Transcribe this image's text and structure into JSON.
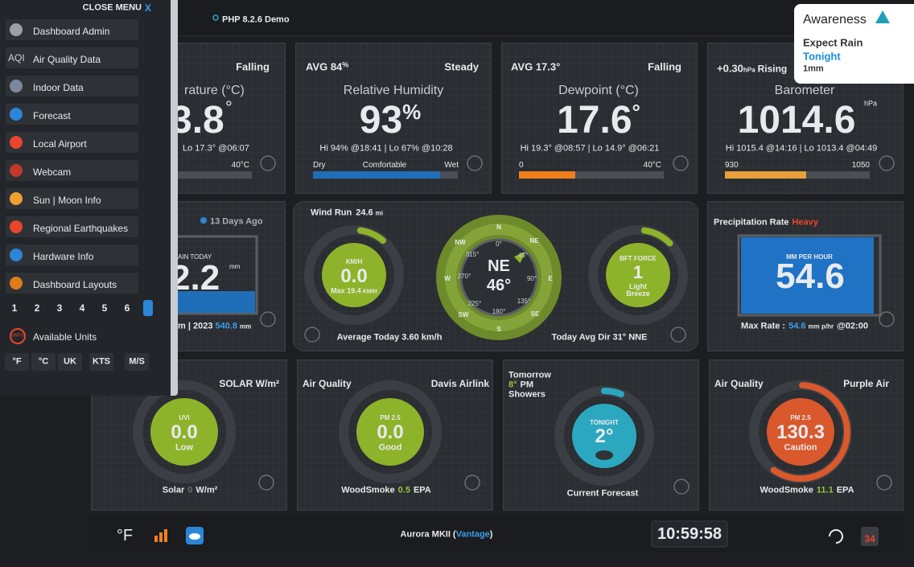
{
  "top_bar": {
    "title": "PHP 8.2.6 Demo"
  },
  "menu": {
    "close": "CLOSE MENU",
    "close_x": "X",
    "aqi_icon": "AQI",
    "items": [
      "Dashboard Admin",
      "Air Quality Data",
      "Indoor Data",
      "Forecast",
      "Local Airport",
      "Webcam",
      "Sun | Moon Info",
      "Regional Earthquakes",
      "Hardware Info",
      "Dashboard Layouts"
    ],
    "layouts": [
      "1",
      "2",
      "3",
      "4",
      "5",
      "6"
    ],
    "units_icon": "UNITS",
    "units_label": "Available Units",
    "unit_buttons": [
      "°F",
      "°C",
      "UK",
      "KTS",
      "M/S"
    ]
  },
  "awareness": {
    "title": "Awareness",
    "heading": "Expect Rain",
    "when": "Tonight",
    "amount": "1mm"
  },
  "temperature": {
    "trend": "Falling",
    "title": "rature (°C)",
    "value": "3.8",
    "unit": "°",
    "hilo": "Lo 17.3° @06:07",
    "bar_max": "40°C"
  },
  "humidity": {
    "avg": "AVG 84",
    "avg_unit": "%",
    "trend": "Steady",
    "title": "Relative Humidity",
    "value": "93",
    "unit": "%",
    "hilo": "Hi 94% @18:41 | Lo 67% @10:28",
    "bar_low": "Dry",
    "bar_mid": "Comfortable",
    "bar_high": "Wet"
  },
  "dewpoint": {
    "avg": "AVG 17.3°",
    "trend": "Falling",
    "title": "Dewpoint (°C)",
    "value": "17.6",
    "unit": "°",
    "hilo": "Hi 19.3° @08:57 | Lo 14.9° @06:21",
    "bar_min": "0",
    "bar_max": "40°C"
  },
  "barometer": {
    "change": "+0.30",
    "change_unit": "hPa",
    "trend": "Rising",
    "title": "Barometer",
    "value": "1014.6",
    "unit": "hPa",
    "hilo": "Hi 1015.4 @14:16 | Lo 1013.4 @04:49",
    "bar_min": "930",
    "bar_max": "1050"
  },
  "rain": {
    "last": "13 Days Ago",
    "label": "AIN TODAY",
    "value": "2.2",
    "unit": "mm",
    "footer": "m | 2023",
    "footer_value": "540.8",
    "footer_unit": "mm"
  },
  "wind": {
    "run_label": "Wind Run",
    "run_value": "24.6",
    "run_unit": "mi",
    "speed_unit": "KM/H",
    "speed": "0.0",
    "max": "Max 19.4",
    "max_unit": "KM/H",
    "direction": "NE",
    "degrees": "46°",
    "compass": [
      "N",
      "NE",
      "E",
      "SE",
      "S",
      "SW",
      "W",
      "NW"
    ],
    "compass_degrees": [
      "0°",
      "45°",
      "90°",
      "135°",
      "180°",
      "225°",
      "270°",
      "315°"
    ],
    "average": "Average Today 3.60 km/h",
    "bft_label": "BFT FORCE",
    "bft": "1",
    "bft_desc": "Light Breeze",
    "avg_dir": "Today Avg Dir 31° NNE"
  },
  "precipitation": {
    "title": "Precipitation Rate",
    "level": "Heavy",
    "unit": "MM PER HOUR",
    "value": "54.6",
    "max_label": "Max Rate :",
    "max_value": "54.6",
    "max_unit": "mm p/hr",
    "max_time": "@02:00"
  },
  "solar": {
    "title": "SOLAR W/m²",
    "uvi": "UVI",
    "uv": "0.0",
    "uv_desc": "Low",
    "footer": "Solar",
    "footer_value": "0",
    "footer_unit": "W/m²"
  },
  "airlink": {
    "label": "Air Quality",
    "source": "Davis Airlink",
    "pm": "PM 2.5",
    "value": "0.0",
    "desc": "Good",
    "footer": "WoodSmoke",
    "footer_value": "0.5",
    "footer_unit": "EPA"
  },
  "forecast": {
    "day": "Tomorrow",
    "temp": "8°",
    "period": "PM",
    "summary": "Showers",
    "label": "TONIGHT",
    "value": "2°",
    "footer": "Current Forecast"
  },
  "purpleair": {
    "label": "Air Quality",
    "source": "Purple Air",
    "pm": "PM 2.5",
    "value": "130.3",
    "desc": "Caution",
    "footer": "WoodSmoke",
    "footer_value": "11.1",
    "footer_unit": "EPA"
  },
  "bottom_bar": {
    "unit": "°F",
    "station": "Aurora MKII (",
    "station_model": "Vantage",
    "station_end": ")",
    "clock": "10:59:58",
    "badge": "34"
  }
}
